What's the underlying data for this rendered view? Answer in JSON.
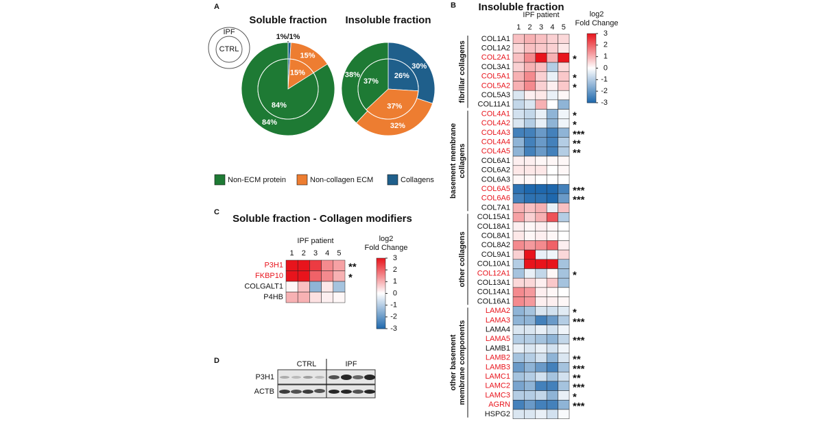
{
  "chart_data": [
    {
      "type": "pie",
      "title": "Soluble fraction",
      "categories": [
        "Non-ECM protein",
        "Non-collagen ECM",
        "Collagens"
      ],
      "colors": [
        "#1e7a34",
        "#ed7d31",
        "#1f5f8b"
      ],
      "series": [
        {
          "name": "IPF",
          "values": [
            84,
            15,
            1
          ],
          "value_labels": [
            "84%",
            "15%",
            null
          ]
        },
        {
          "name": "CTRL",
          "values": [
            84,
            15,
            1
          ],
          "value_labels": [
            "84%",
            "15%",
            null
          ]
        }
      ],
      "annotation": "1%/1%"
    },
    {
      "type": "pie",
      "title": "Insoluble fraction",
      "categories": [
        "Non-ECM protein",
        "Non-collagen ECM",
        "Collagens"
      ],
      "colors": [
        "#1e7a34",
        "#ed7d31",
        "#1f5f8b"
      ],
      "series": [
        {
          "name": "IPF",
          "values": [
            38,
            32,
            30
          ],
          "value_labels": [
            "38%",
            "32%",
            "30%"
          ]
        },
        {
          "name": "CTRL",
          "values": [
            37,
            37,
            26
          ],
          "value_labels": [
            "37%",
            "37%",
            "26%"
          ]
        }
      ]
    }
  ],
  "panel_labels": [
    "A",
    "B",
    "C",
    "D"
  ],
  "heatmap_b": {
    "title": "Insoluble fraction",
    "column_title": "IPF patient",
    "columns": [
      1,
      2,
      3,
      4,
      5
    ],
    "colorbar_title": [
      "log2",
      "Fold Change"
    ],
    "colorbar_lim": [
      -3,
      3
    ],
    "colorbar_ticks": [
      3,
      2,
      1,
      0,
      -1,
      -2,
      -3
    ],
    "scale_colors": [
      "#1f68ad",
      "#ffffff",
      "#e8141c"
    ],
    "highlight_color": "#e8141c",
    "groups": [
      {
        "label": [
          "fibrillar collagens"
        ],
        "start": 0,
        "end": 7
      },
      {
        "label": [
          "basement membrane",
          "collagens"
        ],
        "start": 8,
        "end": 18
      },
      {
        "label": [
          "other collagens"
        ],
        "start": 19,
        "end": 28
      },
      {
        "label": [
          "other basement",
          "membrane components"
        ],
        "start": 29,
        "end": 40
      }
    ],
    "rows": [
      {
        "gene": "COL1A1",
        "values": [
          0.8,
          1,
          0.8,
          0.6,
          0.5
        ]
      },
      {
        "gene": "COL1A2",
        "values": [
          0.5,
          0.8,
          0.7,
          0.6,
          0.3
        ]
      },
      {
        "gene": "COL2A1",
        "values": [
          0.8,
          1.5,
          3,
          1,
          3
        ],
        "highlight": true,
        "stars": "*"
      },
      {
        "gene": "COL3A1",
        "values": [
          0.6,
          1,
          0.8,
          -1,
          0.5
        ]
      },
      {
        "gene": "COL5A1",
        "values": [
          1,
          1.5,
          0.6,
          -0.3,
          0.7
        ],
        "highlight": true,
        "stars": "*"
      },
      {
        "gene": "COL5A2",
        "values": [
          1,
          1.5,
          0.6,
          0.2,
          0.7
        ],
        "highlight": true,
        "stars": "*"
      },
      {
        "gene": "COL5A3",
        "values": [
          -0.5,
          0.2,
          0.3,
          -0.3,
          0.1
        ]
      },
      {
        "gene": "COL11A1",
        "values": [
          -0.8,
          -0.5,
          1,
          0,
          -1.5
        ]
      },
      {
        "gene": "COL4A1",
        "values": [
          -0.6,
          -0.8,
          -0.3,
          -1.5,
          -0.2
        ],
        "highlight": true,
        "stars": "*"
      },
      {
        "gene": "COL4A2",
        "values": [
          -0.5,
          -1,
          -0.3,
          -1.5,
          -0.2
        ],
        "highlight": true,
        "stars": "*"
      },
      {
        "gene": "COL4A3",
        "values": [
          -2.5,
          -2.5,
          -2,
          -2.5,
          -1.5
        ],
        "highlight": true,
        "stars": "***"
      },
      {
        "gene": "COL4A4",
        "values": [
          -1.5,
          -2.5,
          -2,
          -2.5,
          -1
        ],
        "highlight": true,
        "stars": "**"
      },
      {
        "gene": "COL4A5",
        "values": [
          -1.5,
          -2.5,
          -2,
          -2.5,
          -1
        ],
        "highlight": true,
        "stars": "**"
      },
      {
        "gene": "COL6A1",
        "values": [
          0.2,
          0.2,
          0.1,
          0.1,
          0.1
        ]
      },
      {
        "gene": "COL6A2",
        "values": [
          0.3,
          0.3,
          0.3,
          0,
          0.1
        ]
      },
      {
        "gene": "COL6A3",
        "values": [
          0.1,
          0.1,
          0,
          0,
          0
        ]
      },
      {
        "gene": "COL6A5",
        "values": [
          -2.8,
          -3,
          -3,
          -3,
          -2.5
        ],
        "highlight": true,
        "stars": "***"
      },
      {
        "gene": "COL6A6",
        "values": [
          -2.5,
          -2.8,
          -2.8,
          -3,
          -2
        ],
        "highlight": true,
        "stars": "***"
      },
      {
        "gene": "COL7A1",
        "values": [
          1,
          0.8,
          1,
          -0.3,
          0.8
        ]
      },
      {
        "gene": "COL15A1",
        "values": [
          1.2,
          0.6,
          1,
          2.2,
          -1
        ]
      },
      {
        "gene": "COL18A1",
        "values": [
          0.2,
          0.1,
          0.2,
          0.1,
          0
        ]
      },
      {
        "gene": "COL8A1",
        "values": [
          0.3,
          0.1,
          0.2,
          0.1,
          0
        ]
      },
      {
        "gene": "COL8A2",
        "values": [
          1.5,
          1.3,
          1.5,
          2,
          0.2
        ]
      },
      {
        "gene": "COL9A1",
        "values": [
          0.6,
          3,
          -0.3,
          -0.2,
          0.5
        ]
      },
      {
        "gene": "COL10A1",
        "values": [
          -1,
          3,
          3,
          3,
          -1.2
        ]
      },
      {
        "gene": "COL12A1",
        "values": [
          -1.2,
          -0.3,
          -0.8,
          0.1,
          -1.2
        ],
        "highlight": true,
        "stars": "*"
      },
      {
        "gene": "COL13A1",
        "values": [
          0.5,
          0.5,
          0.2,
          0.7,
          -1.2
        ]
      },
      {
        "gene": "COL14A1",
        "values": [
          1.5,
          1.3,
          0.2,
          0.1,
          0
        ]
      },
      {
        "gene": "COL16A1",
        "values": [
          1.5,
          1.3,
          0.2,
          0.2,
          0.1
        ]
      },
      {
        "gene": "LAMA2",
        "values": [
          -1.5,
          -1.2,
          -0.5,
          -0.6,
          -0.4
        ],
        "highlight": true,
        "stars": "*"
      },
      {
        "gene": "LAMA3",
        "values": [
          -1.5,
          -1.5,
          -2.5,
          -2,
          -1
        ],
        "highlight": true,
        "stars": "***"
      },
      {
        "gene": "LAMA4",
        "values": [
          -0.5,
          -0.5,
          -0.3,
          -0.6,
          -0.2
        ]
      },
      {
        "gene": "LAMA5",
        "values": [
          -1,
          -1,
          -1.2,
          -1.5,
          -0.8
        ],
        "highlight": true,
        "stars": "***"
      },
      {
        "gene": "LAMB1",
        "values": [
          -0.3,
          -0.5,
          -0.3,
          -0.6,
          -0.2
        ]
      },
      {
        "gene": "LAMB2",
        "values": [
          -1.2,
          -1,
          -0.6,
          -1.5,
          -0.5
        ],
        "highlight": true,
        "stars": "**"
      },
      {
        "gene": "LAMB3",
        "values": [
          -2,
          -1.5,
          -2,
          -2.5,
          -1.2
        ],
        "highlight": true,
        "stars": "***"
      },
      {
        "gene": "LAMC1",
        "values": [
          -1.2,
          -1,
          -0.6,
          -1.2,
          -0.6
        ],
        "highlight": true,
        "stars": "**"
      },
      {
        "gene": "LAMC2",
        "values": [
          -1.8,
          -1.5,
          -2.5,
          -2.5,
          -1.2
        ],
        "highlight": true,
        "stars": "***"
      },
      {
        "gene": "LAMC3",
        "values": [
          -1,
          -1,
          -0.8,
          -1.5,
          -0.3
        ],
        "highlight": true,
        "stars": "*"
      },
      {
        "gene": "AGRN",
        "values": [
          -2.5,
          -2,
          -2.5,
          -2.5,
          -1.5
        ],
        "highlight": true,
        "stars": "***"
      },
      {
        "gene": "HSPG2",
        "values": [
          -0.5,
          -0.5,
          -0.3,
          -0.6,
          -0.1
        ]
      }
    ]
  },
  "heatmap_c": {
    "title": "Soluble fraction - Collagen modifiers",
    "column_title": "IPF patient",
    "columns": [
      1,
      2,
      3,
      4,
      5
    ],
    "colorbar_title": [
      "log2",
      "Fold Change"
    ],
    "colorbar_lim": [
      -3,
      3
    ],
    "colorbar_ticks": [
      3,
      2,
      1,
      0,
      -1,
      -2,
      -3
    ],
    "scale_colors": [
      "#1f68ad",
      "#ffffff",
      "#e8141c"
    ],
    "highlight_color": "#e8141c",
    "rows": [
      {
        "gene": "P3H1",
        "values": [
          3,
          3,
          2.5,
          1.5,
          1.2
        ],
        "highlight": true,
        "stars": "**"
      },
      {
        "gene": "FKBP10",
        "values": [
          3,
          3,
          2,
          1.5,
          1
        ],
        "highlight": true,
        "stars": "*"
      },
      {
        "gene": "COLGALT1",
        "values": [
          0.1,
          0.8,
          -1.5,
          0.3,
          -1.2
        ]
      },
      {
        "gene": "P4HB",
        "values": [
          1,
          1,
          0.4,
          0.2,
          0.1
        ]
      }
    ]
  },
  "panel_d": {
    "groups": [
      "CTRL",
      "IPF"
    ],
    "rows": [
      "P3H1",
      "ACTB"
    ]
  }
}
